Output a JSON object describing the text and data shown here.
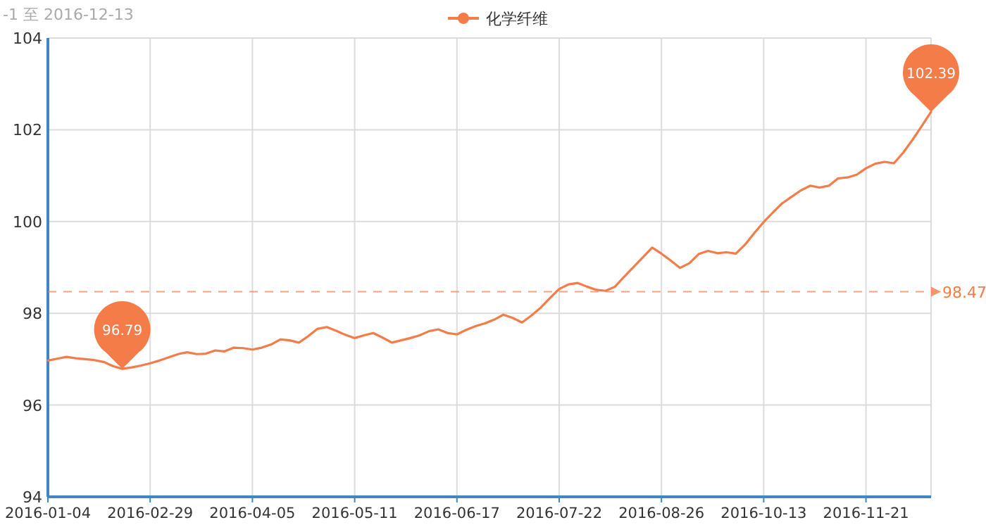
{
  "chart_data": {
    "type": "line",
    "subtitle": "-1 至 2016-12-13",
    "categories": [
      "2016-01-04",
      null,
      null,
      null,
      null,
      null,
      null,
      null,
      null,
      null,
      null,
      "2016-02-29",
      null,
      null,
      null,
      null,
      null,
      null,
      null,
      null,
      null,
      null,
      "2016-04-05",
      null,
      null,
      null,
      null,
      null,
      null,
      null,
      null,
      null,
      null,
      "2016-05-11",
      null,
      null,
      null,
      null,
      null,
      null,
      null,
      null,
      null,
      null,
      "2016-06-17",
      null,
      null,
      null,
      null,
      null,
      null,
      null,
      null,
      null,
      null,
      "2016-07-22",
      null,
      null,
      null,
      null,
      null,
      null,
      null,
      null,
      null,
      null,
      "2016-08-26",
      null,
      null,
      null,
      null,
      null,
      null,
      null,
      null,
      null,
      null,
      "2016-10-13",
      null,
      null,
      null,
      null,
      null,
      null,
      null,
      null,
      null,
      null,
      "2016-11-21",
      null,
      null,
      null,
      null,
      null,
      null,
      null
    ],
    "series": [
      {
        "name": "化学纤维",
        "color": "#f47c48",
        "values": [
          96.97,
          97.01,
          97.05,
          97.02,
          97.0,
          96.98,
          96.94,
          96.85,
          96.79,
          96.82,
          96.86,
          96.91,
          96.97,
          97.04,
          97.11,
          97.15,
          97.11,
          97.12,
          97.19,
          97.17,
          97.25,
          97.24,
          97.21,
          97.25,
          97.32,
          97.43,
          97.41,
          97.36,
          97.5,
          97.66,
          97.7,
          97.62,
          97.53,
          97.46,
          97.52,
          97.57,
          97.47,
          97.36,
          97.41,
          97.46,
          97.52,
          97.61,
          97.65,
          97.57,
          97.54,
          97.64,
          97.72,
          97.78,
          97.86,
          97.97,
          97.9,
          97.8,
          97.95,
          98.12,
          98.33,
          98.53,
          98.63,
          98.66,
          98.58,
          98.51,
          98.49,
          98.58,
          98.8,
          99.01,
          99.22,
          99.43,
          99.3,
          99.15,
          98.99,
          99.09,
          99.29,
          99.36,
          99.31,
          99.33,
          99.3,
          99.5,
          99.75,
          99.99,
          100.2,
          100.4,
          100.54,
          100.68,
          100.78,
          100.74,
          100.78,
          100.94,
          100.96,
          101.02,
          101.16,
          101.26,
          101.3,
          101.27,
          101.5,
          101.78,
          102.08,
          102.39
        ]
      }
    ],
    "ylim": [
      94,
      104
    ],
    "yticks": [
      94,
      96,
      98,
      100,
      102,
      104
    ],
    "grid": true,
    "legend": "top",
    "ref_lines": [
      {
        "axis": "y",
        "value": 98.47,
        "label": "98.47",
        "line_style": "dashed"
      }
    ],
    "annotations": [
      {
        "text": "96.79",
        "y": 96.79
      },
      {
        "text": "102.39",
        "y": 102.39
      }
    ]
  }
}
